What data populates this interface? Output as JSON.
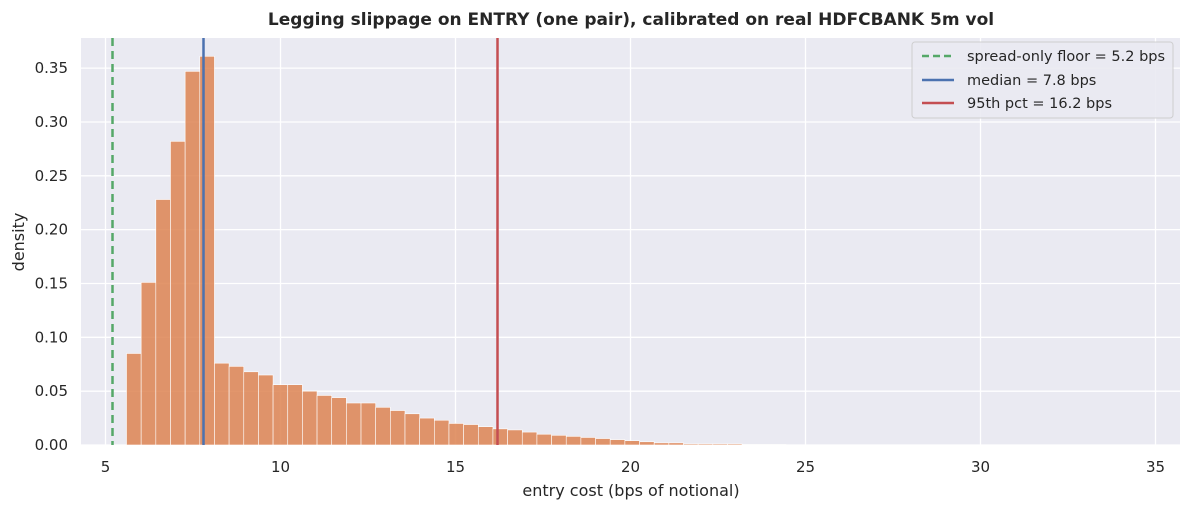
{
  "chart_data": {
    "type": "histogram",
    "title": "Legging slippage on ENTRY (one pair), calibrated on real HDFCBANK 5m vol",
    "xlabel": "entry cost (bps of notional)",
    "ylabel": "density",
    "xlim": [
      4.3,
      35.7
    ],
    "ylim": [
      0,
      0.378
    ],
    "xticks": [
      5,
      10,
      15,
      20,
      25,
      30,
      35
    ],
    "yticks": [
      0.0,
      0.05,
      0.1,
      0.15,
      0.2,
      0.25,
      0.3,
      0.35
    ],
    "grid": true,
    "legend_position": "top-right",
    "bins": {
      "start": 5.6,
      "width": 0.4188,
      "density": [
        0.085,
        0.151,
        0.228,
        0.282,
        0.347,
        0.361,
        0.076,
        0.073,
        0.068,
        0.065,
        0.056,
        0.056,
        0.05,
        0.046,
        0.044,
        0.039,
        0.039,
        0.035,
        0.032,
        0.029,
        0.025,
        0.023,
        0.02,
        0.019,
        0.017,
        0.015,
        0.014,
        0.012,
        0.01,
        0.009,
        0.008,
        0.007,
        0.006,
        0.005,
        0.004,
        0.003,
        0.002,
        0.002,
        0.001,
        0.001,
        0.001,
        0.001,
        0.0005,
        0.0005,
        0.0005
      ],
      "color": "#dd8452"
    },
    "vlines": [
      {
        "name": "spread-only floor = 5.2 bps",
        "x": 5.2,
        "color": "#55a868",
        "style": "dashed"
      },
      {
        "name": "median = 7.8 bps",
        "x": 7.8,
        "color": "#4c72b0",
        "style": "solid"
      },
      {
        "name": "95th pct = 16.2 bps",
        "x": 16.2,
        "color": "#c44e52",
        "style": "solid"
      }
    ],
    "background": "#eaeaf2",
    "grid_color": "#ffffff"
  }
}
